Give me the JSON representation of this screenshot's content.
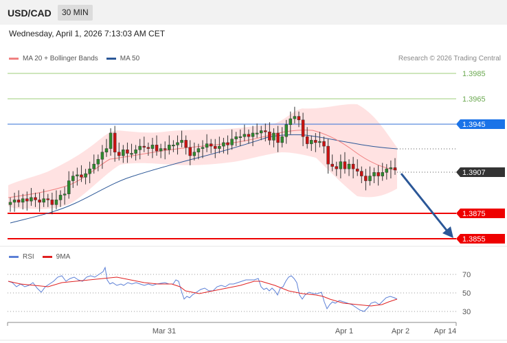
{
  "header": {
    "symbol": "USD/CAD",
    "interval": "30 MIN",
    "datetime": "Wednesday, April 1, 2026 7:13:03 AM CET"
  },
  "legend": {
    "ma20_label": "MA 20 + Bollinger Bands",
    "ma50_label": "MA 50",
    "ma20_color": "#f08080",
    "ma50_color": "#2b5797",
    "copyright": "Research © 2026 Trading Central"
  },
  "price_levels": {
    "r2": "1.3985",
    "r1": "1.3965",
    "pivot": "1.3945",
    "last": "1.3907",
    "s1": "1.3875",
    "s2": "1.3855",
    "resistance_color": "#6aa84f",
    "pivot_color": "#1a73e8",
    "support_color": "#ee0000",
    "last_color": "#333333"
  },
  "rsi": {
    "rsi_label": "RSI",
    "ma_label": "9MA",
    "rsi_color": "#5b7fd6",
    "ma_color": "#e02020",
    "levels": [
      "70",
      "50",
      "30"
    ]
  },
  "x_axis": {
    "labels": [
      "Mar 31",
      "Apr 1",
      "Apr 2",
      "Apr 14"
    ]
  },
  "chart_data": {
    "type": "candlestick",
    "y_range": [
      1.3846,
      1.3992
    ],
    "candle_colors": {
      "up": "#2e8b2e",
      "down": "#cc1111"
    },
    "closes": [
      1.388,
      1.3882,
      1.388,
      1.3883,
      1.3881,
      1.3884,
      1.3882,
      1.388,
      1.3883,
      1.3882,
      1.3878,
      1.3882,
      1.3886,
      1.3887,
      1.3898,
      1.3902,
      1.3903,
      1.3901,
      1.3904,
      1.3908,
      1.3912,
      1.3916,
      1.3922,
      1.3925,
      1.3938,
      1.3922,
      1.3919,
      1.3924,
      1.3921,
      1.3921,
      1.3924,
      1.3927,
      1.3926,
      1.3925,
      1.3928,
      1.3923,
      1.3925,
      1.3924,
      1.3928,
      1.3928,
      1.393,
      1.3932,
      1.3926,
      1.3919,
      1.3922,
      1.3925,
      1.3926,
      1.3929,
      1.3927,
      1.3925,
      1.3927,
      1.393,
      1.3928,
      1.3933,
      1.3935,
      1.3935,
      1.3937,
      1.3935,
      1.3938,
      1.3938,
      1.394,
      1.3939,
      1.3932,
      1.3938,
      1.393,
      1.3935,
      1.3945,
      1.395,
      1.3952,
      1.3949,
      1.3935,
      1.3929,
      1.3932,
      1.393,
      1.3931,
      1.3927,
      1.3912,
      1.391,
      1.3908,
      1.3914,
      1.3908,
      1.3912,
      1.3908,
      1.3906,
      1.3902,
      1.3898,
      1.3902,
      1.3905,
      1.3902,
      1.3905,
      1.3908,
      1.3909,
      1.3907
    ]
  }
}
